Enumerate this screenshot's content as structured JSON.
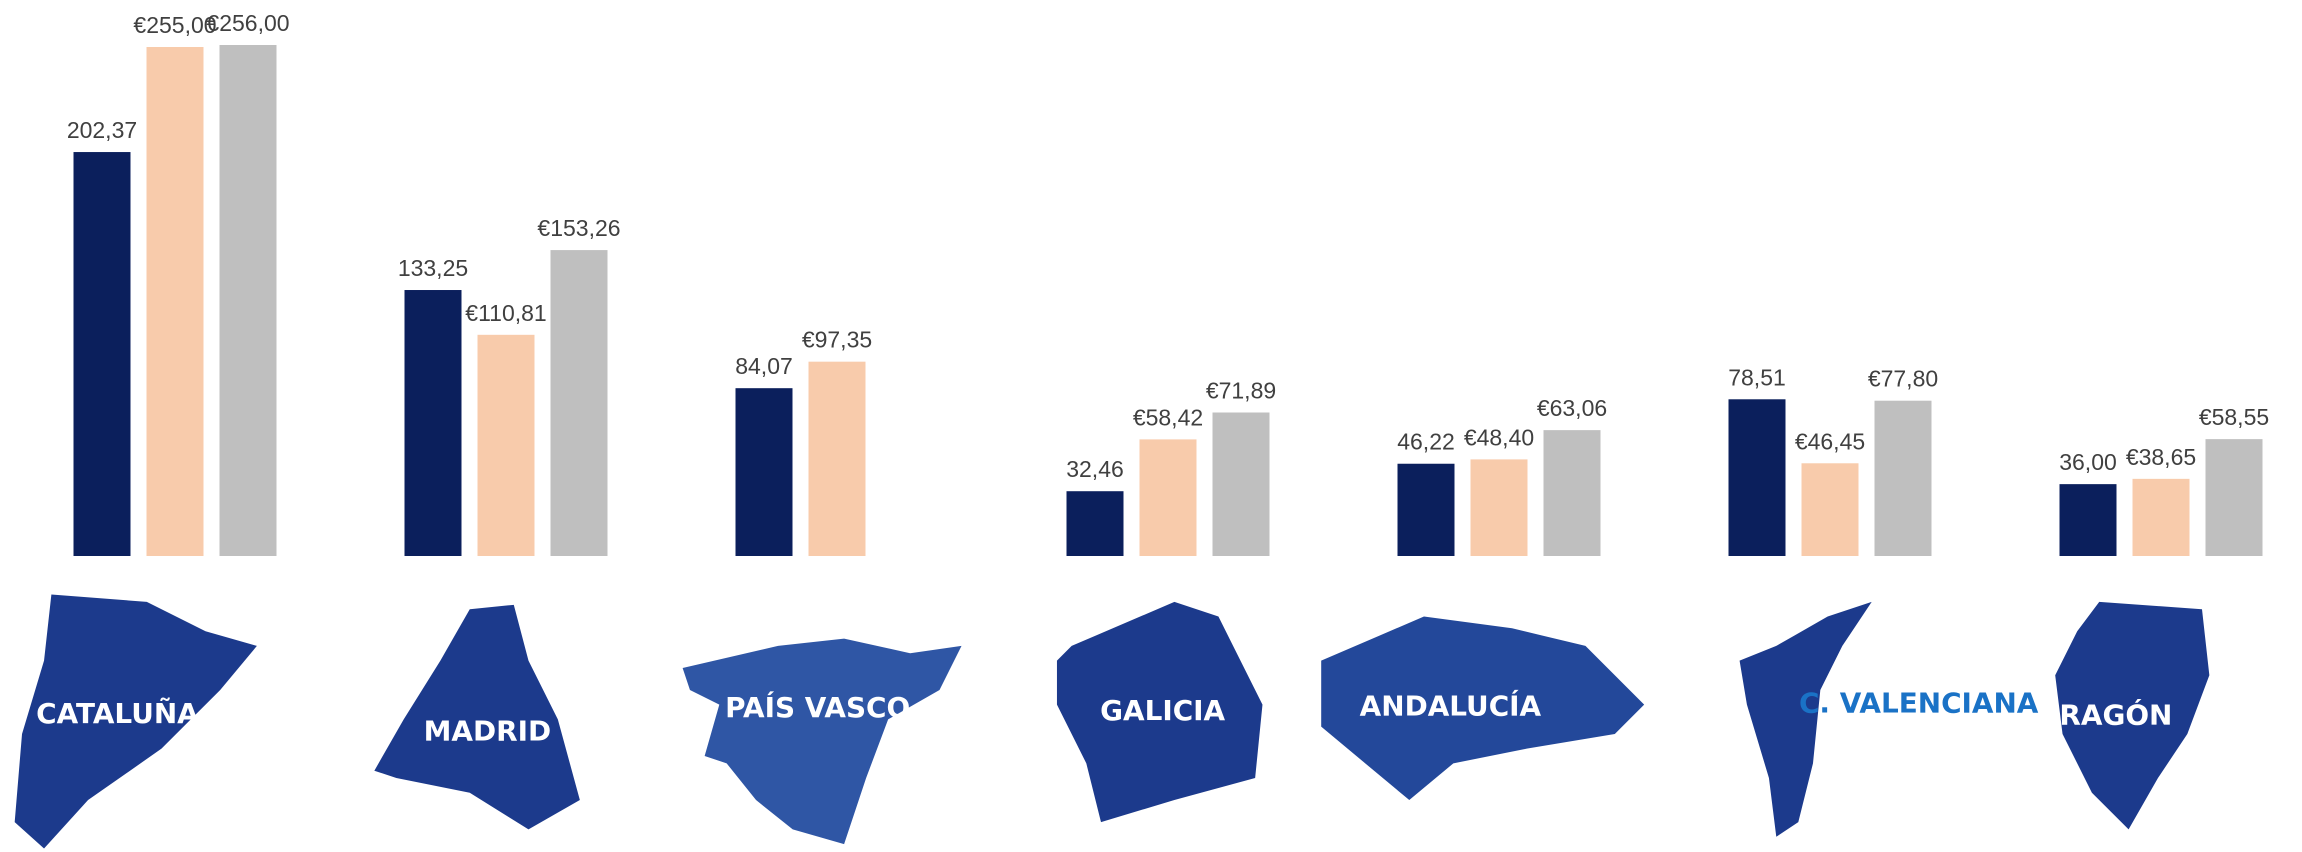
{
  "chart_data": {
    "type": "bar",
    "categories": [
      "CATALUÑA",
      "MADRID",
      "PAÍS VASCO",
      "GALICIA",
      "ANDALUCÍA",
      "C. VALENCIANA",
      "ARAGÓN"
    ],
    "series": [
      {
        "color": "#0b1f5c",
        "values": [
          202.37,
          133.25,
          84.07,
          32.46,
          46.22,
          78.51,
          36.0
        ],
        "value_labels": [
          "202,37",
          "133,25",
          "84,07",
          "32,46",
          "46,22",
          "78,51",
          "36,00"
        ]
      },
      {
        "color": "#f8cbab",
        "values": [
          255.0,
          110.81,
          97.35,
          58.42,
          48.4,
          46.45,
          38.65
        ],
        "value_labels": [
          "€255,00",
          "€110,81",
          "€97,35",
          "€58,42",
          "€48,40",
          "€46,45",
          "€38,65"
        ]
      },
      {
        "color": "#bfbfbf",
        "values": [
          256.0,
          153.26,
          null,
          71.89,
          63.06,
          77.8,
          58.55
        ],
        "value_labels": [
          "€256,00",
          "€153,26",
          null,
          "€71,89",
          "€63,06",
          "€77,80",
          "€58,55"
        ]
      }
    ]
  }
}
